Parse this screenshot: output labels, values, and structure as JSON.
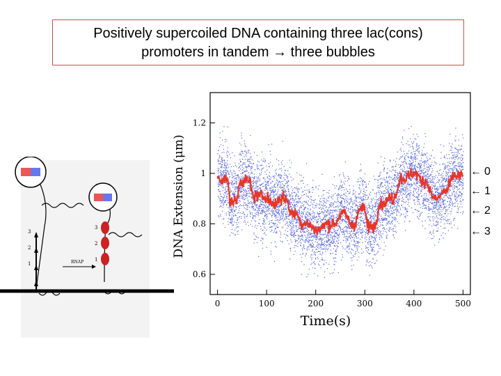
{
  "slide": {
    "title_line1": "Positively supercoiled DNA containing three lac(cons)",
    "title_line2": "promoters in tandem → three bubbles"
  },
  "diagram": {
    "arrow_label": "RNAP",
    "left_sites": [
      "3",
      "2",
      "1"
    ],
    "right_sites": [
      "3",
      "2",
      "1"
    ]
  },
  "markers": [
    {
      "arrow": "←",
      "label": "0"
    },
    {
      "arrow": "←",
      "label": "1"
    },
    {
      "arrow": "←",
      "label": "2"
    },
    {
      "arrow": "←",
      "label": "3"
    }
  ],
  "chart_data": {
    "type": "scatter",
    "title": "",
    "xlabel": "Time(s)",
    "ylabel": "DNA Extension (μm)",
    "xlim": [
      -15,
      515
    ],
    "ylim": [
      0.52,
      1.32
    ],
    "xticks": [
      0,
      100,
      200,
      300,
      400,
      500
    ],
    "yticks": [
      0.6,
      0.8,
      1.0,
      1.2
    ],
    "ytick_labels": [
      "0.6",
      "0.8",
      "1",
      "1.2"
    ],
    "grid": false,
    "series": [
      {
        "kind": "raw",
        "color": "#5566dd",
        "points_per_second": 12,
        "noise_sd": 0.075
      },
      {
        "kind": "filtered",
        "color": "#e8352a",
        "x": [
          0,
          20,
          25,
          40,
          45,
          65,
          72,
          100,
          110,
          120,
          125,
          140,
          150,
          165,
          170,
          185,
          195,
          210,
          220,
          240,
          250,
          260,
          270,
          280,
          290,
          300,
          305,
          320,
          330,
          340,
          350,
          360,
          372,
          385,
          395,
          405,
          415,
          425,
          440,
          450,
          460,
          468,
          480,
          500
        ],
        "y": [
          0.98,
          0.98,
          0.89,
          0.89,
          0.97,
          0.97,
          0.91,
          0.91,
          0.88,
          0.88,
          0.9,
          0.9,
          0.84,
          0.84,
          0.8,
          0.8,
          0.78,
          0.78,
          0.8,
          0.8,
          0.84,
          0.84,
          0.8,
          0.8,
          0.86,
          0.86,
          0.79,
          0.79,
          0.88,
          0.88,
          0.9,
          0.9,
          0.98,
          0.98,
          1.0,
          1.0,
          0.97,
          0.97,
          0.9,
          0.9,
          0.93,
          0.93,
          0.99,
          0.99
        ]
      }
    ]
  }
}
